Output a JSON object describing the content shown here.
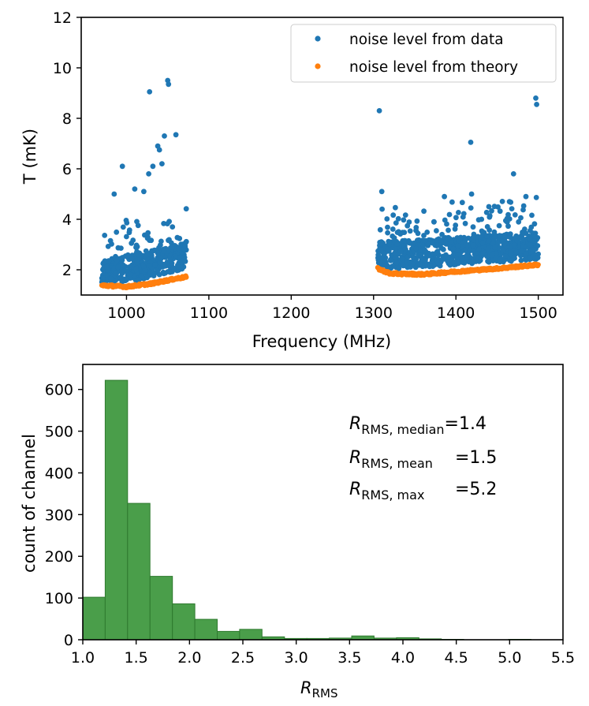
{
  "chart_data": [
    {
      "type": "scatter",
      "xlabel": "Frequency (MHz)",
      "ylabel": "T (mK)",
      "xlim": [
        945,
        1530
      ],
      "ylim": [
        1,
        12
      ],
      "xticks": [
        1000,
        1100,
        1200,
        1300,
        1400,
        1500
      ],
      "yticks": [
        2,
        4,
        6,
        8,
        10,
        12
      ],
      "legend_position": "top-right",
      "legend": [
        "noise level from data",
        "noise level from theory"
      ],
      "series": [
        {
          "name": "noise level from data",
          "color": "#1f77b4",
          "ranges": [
            [
              970,
              1073
            ],
            [
              1305,
              1500
            ]
          ],
          "typical_range": [
            1.7,
            3.5
          ],
          "outliers": [
            [
              1028,
              9.05
            ],
            [
              1050,
              9.5
            ],
            [
              1051,
              9.35
            ],
            [
              1046,
              7.3
            ],
            [
              1060,
              7.35
            ],
            [
              1038,
              6.9
            ],
            [
              1040,
              6.75
            ],
            [
              1027,
              5.8
            ],
            [
              995,
              6.1
            ],
            [
              985,
              5.0
            ],
            [
              1032,
              6.1
            ],
            [
              1043,
              6.2
            ],
            [
              1010,
              5.2
            ],
            [
              1021,
              5.1
            ],
            [
              1307,
              8.3
            ],
            [
              1310,
              5.1
            ],
            [
              1418,
              7.05
            ],
            [
              1419,
              5.0
            ],
            [
              1386,
              4.9
            ],
            [
              1470,
              5.8
            ],
            [
              1497,
              8.8
            ],
            [
              1498,
              8.55
            ],
            [
              1485,
              4.9
            ],
            [
              1440,
              4.5
            ],
            [
              1465,
              4.7
            ]
          ]
        },
        {
          "name": "noise level from theory",
          "color": "#ff7f0e",
          "ranges": [
            [
              970,
              1073
            ],
            [
              1305,
              1500
            ]
          ],
          "segments": [
            {
              "x": [
                970,
                1000,
                1030,
                1060,
                1073
              ],
              "y": [
                1.38,
                1.33,
                1.45,
                1.65,
                1.72
              ]
            },
            {
              "x": [
                1305,
                1320,
                1360,
                1400,
                1450,
                1500
              ],
              "y": [
                2.05,
                1.85,
                1.82,
                1.93,
                2.05,
                2.2
              ]
            }
          ]
        }
      ]
    },
    {
      "type": "bar",
      "subtype": "histogram",
      "color": "#4a9e4a",
      "xlabel": "R",
      "xlabel_sub": "RMS",
      "ylabel": "count of channel",
      "xlim": [
        1.0,
        5.5
      ],
      "ylim": [
        0,
        660
      ],
      "xticks": [
        "1.0",
        "1.5",
        "2.0",
        "2.5",
        "3.0",
        "3.5",
        "4.0",
        "4.5",
        "5.0",
        "5.5"
      ],
      "yticks": [
        0,
        100,
        200,
        300,
        400,
        500,
        600
      ],
      "bin_edges": [
        1.0,
        1.21,
        1.42,
        1.63,
        1.84,
        2.05,
        2.26,
        2.47,
        2.68,
        2.89,
        3.1,
        3.31,
        3.52,
        3.73,
        3.94,
        4.15,
        4.36,
        4.57,
        4.78,
        4.99,
        5.2
      ],
      "values": [
        102,
        622,
        327,
        152,
        86,
        49,
        20,
        25,
        7,
        3,
        3,
        4,
        9,
        4,
        5,
        2,
        1,
        0,
        0,
        1
      ],
      "annotations": [
        {
          "label": "R",
          "sub": "RMS, median",
          "value": "=1.4"
        },
        {
          "label": "R",
          "sub": "RMS, mean",
          "value": "=1.5"
        },
        {
          "label": "R",
          "sub": "RMS, max",
          "value": "=5.2"
        }
      ]
    }
  ]
}
